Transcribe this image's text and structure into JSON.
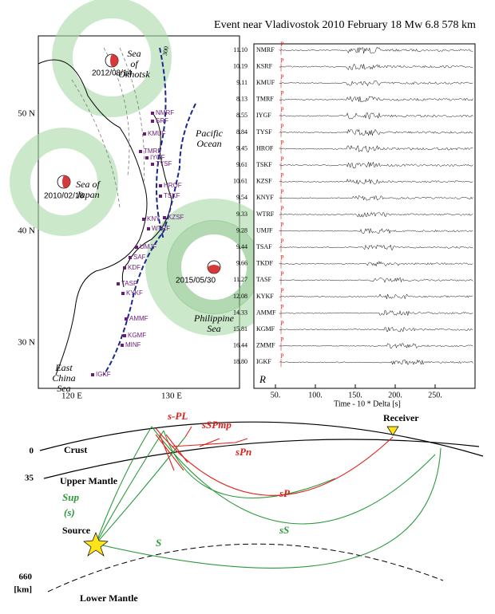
{
  "title": "Event near Vladivostok 2010 February 18  Mw 6.8  578 km",
  "map": {
    "lat_labels": [
      "50 N",
      "40 N",
      "30 N"
    ],
    "lon_labels": [
      "120 E",
      "130 E"
    ],
    "contour_label": "300",
    "seas": [
      [
        "Sea",
        "of",
        "Okhotsk"
      ],
      [
        "Pacific",
        "Ocean"
      ],
      [
        "Sea of",
        "Japan"
      ],
      [
        "East",
        "China",
        "Sea"
      ],
      [
        "Philippine",
        "Sea"
      ]
    ],
    "events": [
      "2012/08/14",
      "2010/02/18",
      "2015/05/30"
    ],
    "stations": [
      "NMRF",
      "SRF",
      "KMUF",
      "TMRF",
      "IYGF",
      "TYSF",
      "HROF",
      "TSKF",
      "KZSF",
      "KNY",
      "WTRF",
      "UMJF",
      "SAF",
      "KDF",
      "TASF",
      "KYKF",
      "AMMF",
      "KGMF",
      "MINF",
      "IGKF"
    ]
  },
  "seismograms": {
    "xlim": [
      23,
      300
    ],
    "xticks": [
      {
        "value": 50,
        "label": "50."
      },
      {
        "value": 100,
        "label": "100."
      },
      {
        "value": 150,
        "label": "150."
      },
      {
        "value": 200,
        "label": "200."
      },
      {
        "value": 250,
        "label": "250."
      }
    ],
    "xlabel": "Time - 10 * Delta [s]",
    "component": "R",
    "phase": "P",
    "stations": [
      {
        "name": "NMRF",
        "delta": "11.10"
      },
      {
        "name": "KSRF",
        "delta": "10.19"
      },
      {
        "name": "KMUF",
        "delta": "9.11"
      },
      {
        "name": "TMRF",
        "delta": "8.13"
      },
      {
        "name": "IYGF",
        "delta": "8.55"
      },
      {
        "name": "TYSF",
        "delta": "8.84"
      },
      {
        "name": "HROF",
        "delta": "9.45"
      },
      {
        "name": "TSKF",
        "delta": "9.61"
      },
      {
        "name": "KZSF",
        "delta": "10.61"
      },
      {
        "name": "KNYF",
        "delta": "9.54"
      },
      {
        "name": "WTRF",
        "delta": "9.33"
      },
      {
        "name": "UMJF",
        "delta": "9.28"
      },
      {
        "name": "TSAF",
        "delta": "9.44"
      },
      {
        "name": "TKDF",
        "delta": "9.66"
      },
      {
        "name": "TASF",
        "delta": "11.27"
      },
      {
        "name": "KYKF",
        "delta": "12.08"
      },
      {
        "name": "AMMF",
        "delta": "14.33"
      },
      {
        "name": "KGMF",
        "delta": "15.81"
      },
      {
        "name": "ZMMF",
        "delta": "16.44"
      },
      {
        "name": "IGKF",
        "delta": "18.80"
      }
    ]
  },
  "diagram": {
    "depths": [
      "0",
      "35",
      "660",
      "[km]"
    ],
    "layers": [
      "Crust",
      "Upper Mantle",
      "Lower Mantle"
    ],
    "red_phases": [
      "s-PL",
      "sSPmp",
      "sPn",
      "sP"
    ],
    "green_phases": [
      "Sup",
      "(s)",
      "sS",
      "S"
    ],
    "source": "Source",
    "receiver": "Receiver"
  }
}
